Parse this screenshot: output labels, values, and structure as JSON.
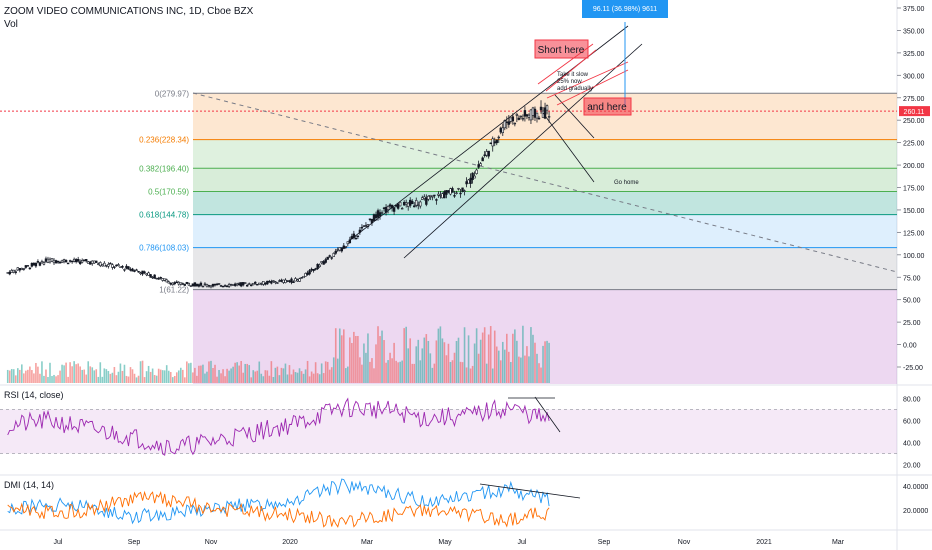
{
  "header": {
    "title": "ZOOM VIDEO COMMUNICATIONS INC, 1D, Cboe BZX",
    "vol_label": "Vol"
  },
  "colors": {
    "up": "#26a69a",
    "down": "#ef5350",
    "candle_body": "#000000",
    "fib_line_0": "#787b86",
    "fib_0236": "#f57c00",
    "fib_0382": "#4caf50",
    "fib_05": "#4caf50",
    "fib_0618": "#089981",
    "fib_0786": "#2196f3",
    "fib_1": "#787b86",
    "rsi_line": "#9c27b0",
    "dmi_plus": "#2196f3",
    "dmi_minus": "#ff6d00",
    "annotation_red": "#f23645",
    "measure_blue": "#2196f3"
  },
  "price_axis": {
    "ticks": [
      "375.00",
      "350.00",
      "325.00",
      "300.00",
      "275.00",
      "250.00",
      "225.00",
      "200.00",
      "175.00",
      "150.00",
      "125.00",
      "100.00",
      "75.00",
      "50.00",
      "25.00",
      "0.00",
      "-25.00"
    ],
    "current_price": "260.11"
  },
  "time_axis": {
    "ticks": [
      "Jul",
      "Sep",
      "Nov",
      "2020",
      "Mar",
      "May",
      "Jul",
      "Sep",
      "Nov",
      "2021",
      "Mar"
    ]
  },
  "fib": {
    "levels": [
      {
        "label": "0(279.97)",
        "price": 279.97
      },
      {
        "label": "0.236(228.34)",
        "price": 228.34
      },
      {
        "label": "0.382(196.40)",
        "price": 196.4
      },
      {
        "label": "0.5(170.59)",
        "price": 170.59
      },
      {
        "label": "0.618(144.78)",
        "price": 144.78
      },
      {
        "label": "0.786(108.03)",
        "price": 108.03
      },
      {
        "label": "1(61.22)",
        "price": 61.22
      }
    ]
  },
  "annotations": {
    "measure": "96.11 (36.98%) 9611",
    "short_here": "Short here",
    "and_here": "and here",
    "take_it_slow_1": "Take it slow",
    "take_it_slow_2": "25% now",
    "take_it_slow_3": "add gradually",
    "go_home": "Go home"
  },
  "rsi": {
    "label": "RSI (14, close)",
    "ticks": [
      "80.00",
      "60.00",
      "40.00",
      "20.00"
    ],
    "upper": 70,
    "lower": 30
  },
  "dmi": {
    "label": "DMI (14, 14)",
    "ticks": [
      "40.0000",
      "20.0000"
    ]
  },
  "chart_data": {
    "type": "candlestick",
    "title": "ZOOM VIDEO COMMUNICATIONS INC, 1D, Cboe BZX",
    "x": [
      "2019-06",
      "2019-07",
      "2019-08",
      "2019-09",
      "2019-10",
      "2019-11",
      "2019-12",
      "2020-01",
      "2020-02",
      "2020-03",
      "2020-04",
      "2020-05",
      "2020-06",
      "2020-07"
    ],
    "series": [
      {
        "name": "Close",
        "values": [
          80,
          94,
          92,
          84,
          68,
          66,
          68,
          72,
          106,
          150,
          160,
          175,
          250,
          260
        ]
      },
      {
        "name": "RSI",
        "values": [
          55,
          60,
          52,
          45,
          35,
          42,
          50,
          58,
          72,
          70,
          62,
          64,
          72,
          60
        ]
      },
      {
        "name": "DMI +",
        "values": [
          20,
          25,
          22,
          15,
          18,
          22,
          25,
          30,
          40,
          35,
          28,
          32,
          38,
          28
        ]
      },
      {
        "name": "DMI -",
        "values": [
          22,
          18,
          20,
          30,
          28,
          20,
          18,
          15,
          10,
          14,
          20,
          16,
          12,
          18
        ]
      }
    ],
    "ylim": [
      -30,
      380
    ],
    "fib_retracement": [
      279.97,
      228.34,
      196.4,
      170.59,
      144.78,
      108.03,
      61.22
    ],
    "legend": "none"
  }
}
